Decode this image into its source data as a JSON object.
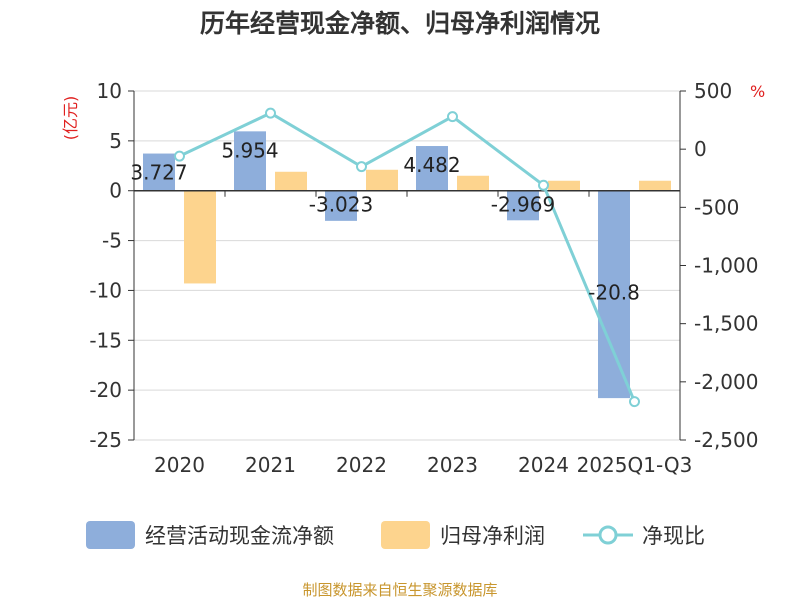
{
  "chart_data": {
    "type": "bar",
    "title": "历年经营现金净额、归母净利润情况",
    "categories": [
      "2020",
      "2021",
      "2022",
      "2023",
      "2024",
      "2025Q1-Q3"
    ],
    "left_axis": {
      "unit": "(亿元)",
      "ylim": [
        -25,
        10
      ],
      "ticks": [
        "10",
        "5",
        "0",
        "-5",
        "-10",
        "-15",
        "-20",
        "-25"
      ],
      "tick_values": [
        10,
        5,
        0,
        -5,
        -10,
        -15,
        -20,
        -25
      ]
    },
    "right_axis": {
      "unit": "%",
      "ylim": [
        -2500,
        500
      ],
      "ticks": [
        "500",
        "0",
        "-500",
        "-1,000",
        "-1,500",
        "-2,000",
        "-2,500"
      ],
      "tick_values": [
        500,
        0,
        -500,
        -1000,
        -1500,
        -2000,
        -2500
      ]
    },
    "series": [
      {
        "name": "经营活动现金流净额",
        "type": "bar",
        "axis": "left",
        "color": "#8eaedb",
        "values": [
          3.727,
          5.954,
          -3.023,
          4.482,
          -2.969,
          -20.8
        ],
        "labels": [
          "3.727",
          "5.954",
          "-3.023",
          "4.482",
          "-2.969",
          "-20.8"
        ]
      },
      {
        "name": "归母净利润",
        "type": "bar",
        "axis": "left",
        "color": "#fdd48e",
        "values": [
          -9.3,
          1.9,
          2.1,
          1.5,
          1.0,
          1.0
        ]
      },
      {
        "name": "净现比",
        "type": "line",
        "axis": "right",
        "color": "#7fd0d6",
        "values": [
          -60,
          310,
          -150,
          280,
          -310,
          -2170
        ]
      }
    ],
    "legend_position": "bottom",
    "grid": true
  },
  "source_note": "制图数据来自恒生聚源数据库"
}
